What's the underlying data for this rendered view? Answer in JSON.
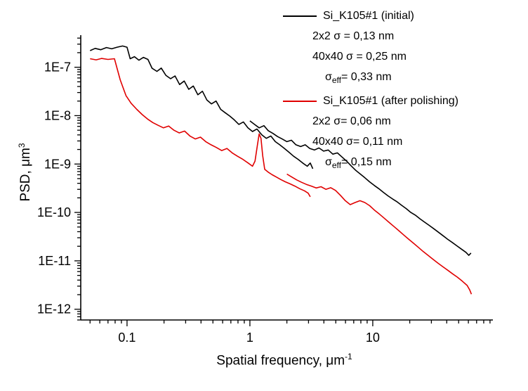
{
  "figure": {
    "background": "#ffffff",
    "text_color": "#000000"
  },
  "axes": {
    "x_title_main": "Spatial frequency, ",
    "x_title_unit": "μm",
    "x_title_sup": "-1",
    "y_title_main": "PSD, ",
    "y_title_unit": "μm",
    "y_title_sup": "3"
  },
  "legend": {
    "entries": [
      {
        "color": "#000000",
        "title": "Si_K105#1 (initial)",
        "line_2x2": "2x2 σ = 0,13 nm",
        "line_40x40": "40x40 σ = 0,25 nm",
        "sigma_symbol": "σ",
        "sigma_sub": "eff",
        "sigma_value": "= 0,33 nm"
      },
      {
        "color": "#e00000",
        "title": "Si_K105#1 (after polishing)",
        "line_2x2": "2x2 σ= 0,06 nm",
        "line_40x40": "40x40 σ= 0,11 nm",
        "sigma_symbol": "σ",
        "sigma_sub": "eff",
        "sigma_value": "= 0,15 nm"
      }
    ]
  },
  "chart_data": {
    "type": "line",
    "title": "",
    "xlabel": "Spatial frequency, μm^-1",
    "ylabel": "PSD, μm^3",
    "x_scale": "log",
    "y_scale": "log",
    "xlim": [
      0.042,
      95
    ],
    "ylim": [
      6e-13,
      4.6e-07
    ],
    "grid": false,
    "legend_position": "top-right",
    "x_ticks": [
      {
        "value": 0.1,
        "label": "0.1"
      },
      {
        "value": 1,
        "label": "1"
      },
      {
        "value": 10,
        "label": "10"
      }
    ],
    "y_ticks": [
      {
        "value": 1e-07,
        "label": "1E-7"
      },
      {
        "value": 1e-08,
        "label": "1E-8"
      },
      {
        "value": 1e-09,
        "label": "1E-9"
      },
      {
        "value": 1e-10,
        "label": "1E-10"
      },
      {
        "value": 1e-11,
        "label": "1E-11"
      },
      {
        "value": 1e-12,
        "label": "1E-12"
      }
    ],
    "series": [
      {
        "name": "Si_K105#1 (initial) 40x40 scan",
        "color": "#000000",
        "points": [
          [
            0.05,
            2.2e-07
          ],
          [
            0.055,
            2.45e-07
          ],
          [
            0.061,
            2.3e-07
          ],
          [
            0.068,
            2.55e-07
          ],
          [
            0.075,
            2.4e-07
          ],
          [
            0.083,
            2.6e-07
          ],
          [
            0.092,
            2.75e-07
          ],
          [
            0.1,
            2.6e-07
          ],
          [
            0.106,
            1.5e-07
          ],
          [
            0.115,
            1.65e-07
          ],
          [
            0.125,
            1.4e-07
          ],
          [
            0.136,
            1.6e-07
          ],
          [
            0.148,
            1.45e-07
          ],
          [
            0.16,
            9.5e-08
          ],
          [
            0.175,
            8.2e-08
          ],
          [
            0.19,
            9.6e-08
          ],
          [
            0.207,
            6.8e-08
          ],
          [
            0.226,
            5.8e-08
          ],
          [
            0.246,
            6.6e-08
          ],
          [
            0.268,
            4.4e-08
          ],
          [
            0.292,
            5.2e-08
          ],
          [
            0.318,
            3.5e-08
          ],
          [
            0.346,
            4.1e-08
          ],
          [
            0.377,
            2.7e-08
          ],
          [
            0.411,
            3.2e-08
          ],
          [
            0.447,
            2.1e-08
          ],
          [
            0.487,
            1.75e-08
          ],
          [
            0.53,
            2e-08
          ],
          [
            0.578,
            1.35e-08
          ],
          [
            0.629,
            1.15e-08
          ],
          [
            0.685,
            9.8e-09
          ],
          [
            0.746,
            8.2e-09
          ],
          [
            0.813,
            6.6e-09
          ],
          [
            0.885,
            7.4e-09
          ],
          [
            0.964,
            5.6e-09
          ],
          [
            1.05,
            4.7e-09
          ],
          [
            1.14,
            5.3e-09
          ],
          [
            1.25,
            4e-09
          ],
          [
            1.36,
            3.4e-09
          ],
          [
            1.48,
            3.8e-09
          ],
          [
            1.61,
            2.9e-09
          ],
          [
            1.75,
            2.5e-09
          ],
          [
            1.91,
            2.1e-09
          ],
          [
            2.08,
            1.75e-09
          ],
          [
            2.27,
            1.45e-09
          ],
          [
            2.47,
            1.25e-09
          ],
          [
            2.69,
            1.05e-09
          ],
          [
            2.93,
            9e-10
          ],
          [
            3.1,
            1.05e-09
          ],
          [
            3.25,
            8e-10
          ]
        ]
      },
      {
        "name": "Si_K105#1 (initial) 2x2 scan",
        "color": "#000000",
        "points": [
          [
            1.0,
            7.8e-09
          ],
          [
            1.09,
            6.6e-09
          ],
          [
            1.19,
            5.6e-09
          ],
          [
            1.3,
            6.2e-09
          ],
          [
            1.41,
            4.9e-09
          ],
          [
            1.54,
            4.3e-09
          ],
          [
            1.68,
            3.7e-09
          ],
          [
            1.83,
            3.3e-09
          ],
          [
            2.0,
            2.9e-09
          ],
          [
            2.18,
            3.1e-09
          ],
          [
            2.37,
            2.5e-09
          ],
          [
            2.59,
            2.3e-09
          ],
          [
            2.82,
            2.5e-09
          ],
          [
            3.07,
            2.1e-09
          ],
          [
            3.35,
            1.95e-09
          ],
          [
            3.65,
            2.15e-09
          ],
          [
            3.98,
            1.85e-09
          ],
          [
            4.34,
            1.95e-09
          ],
          [
            4.73,
            1.6e-09
          ],
          [
            5.15,
            1.7e-09
          ],
          [
            5.61,
            1.4e-09
          ],
          [
            6.12,
            1.15e-09
          ],
          [
            6.67,
            9.2e-10
          ],
          [
            7.27,
            7.4e-10
          ],
          [
            7.92,
            6.2e-10
          ],
          [
            8.63,
            5.2e-10
          ],
          [
            9.41,
            4.3e-10
          ],
          [
            10.3,
            3.6e-10
          ],
          [
            11.2,
            3.1e-10
          ],
          [
            12.2,
            2.6e-10
          ],
          [
            13.3,
            2.2e-10
          ],
          [
            14.5,
            1.9e-10
          ],
          [
            15.8,
            1.65e-10
          ],
          [
            17.2,
            1.4e-10
          ],
          [
            18.7,
            1.2e-10
          ],
          [
            20.4,
            1e-10
          ],
          [
            22.2,
            8.8e-11
          ],
          [
            24.2,
            7.4e-11
          ],
          [
            26.4,
            6.3e-11
          ],
          [
            28.8,
            5.4e-11
          ],
          [
            31.4,
            4.6e-11
          ],
          [
            34.2,
            3.9e-11
          ],
          [
            37.3,
            3.3e-11
          ],
          [
            40.6,
            2.8e-11
          ],
          [
            44.3,
            2.4e-11
          ],
          [
            48.3,
            2.05e-11
          ],
          [
            52.6,
            1.75e-11
          ],
          [
            57.3,
            1.5e-11
          ],
          [
            60.5,
            1.3e-11
          ],
          [
            63.0,
            1.45e-11
          ]
        ]
      },
      {
        "name": "Si_K105#1 (after polishing) 40x40 scan",
        "color": "#e00000",
        "points": [
          [
            0.05,
            1.5e-07
          ],
          [
            0.056,
            1.42e-07
          ],
          [
            0.062,
            1.52e-07
          ],
          [
            0.07,
            1.45e-07
          ],
          [
            0.079,
            1.5e-07
          ],
          [
            0.088,
            5.5e-08
          ],
          [
            0.098,
            2.6e-08
          ],
          [
            0.108,
            1.8e-08
          ],
          [
            0.12,
            1.35e-08
          ],
          [
            0.133,
            1.05e-08
          ],
          [
            0.147,
            8.5e-09
          ],
          [
            0.162,
            7.2e-09
          ],
          [
            0.179,
            6.3e-09
          ],
          [
            0.198,
            5.6e-09
          ],
          [
            0.218,
            6.1e-09
          ],
          [
            0.241,
            5e-09
          ],
          [
            0.266,
            4.4e-09
          ],
          [
            0.294,
            4.8e-09
          ],
          [
            0.325,
            3.8e-09
          ],
          [
            0.359,
            3.3e-09
          ],
          [
            0.396,
            3.6e-09
          ],
          [
            0.437,
            2.9e-09
          ],
          [
            0.483,
            2.5e-09
          ],
          [
            0.533,
            2.2e-09
          ],
          [
            0.589,
            1.9e-09
          ],
          [
            0.65,
            2.1e-09
          ],
          [
            0.718,
            1.7e-09
          ],
          [
            0.793,
            1.45e-09
          ],
          [
            0.876,
            1.25e-09
          ],
          [
            0.967,
            1.05e-09
          ],
          [
            1.05,
            9e-10
          ],
          [
            1.1,
            1.15e-09
          ],
          [
            1.15,
            2.4e-09
          ],
          [
            1.19,
            4.2e-09
          ],
          [
            1.23,
            3.4e-09
          ],
          [
            1.27,
            1.5e-09
          ],
          [
            1.32,
            7.8e-10
          ],
          [
            1.41,
            6.8e-10
          ],
          [
            1.52,
            6e-10
          ],
          [
            1.64,
            5.4e-10
          ],
          [
            1.78,
            4.8e-10
          ],
          [
            1.94,
            4.3e-10
          ],
          [
            2.12,
            3.9e-10
          ],
          [
            2.32,
            3.5e-10
          ],
          [
            2.54,
            3.1e-10
          ],
          [
            2.78,
            2.8e-10
          ],
          [
            2.98,
            2.5e-10
          ],
          [
            3.1,
            2.1e-10
          ]
        ]
      },
      {
        "name": "Si_K105#1 (after polishing) 2x2 scan",
        "color": "#e00000",
        "points": [
          [
            2.0,
            6.2e-10
          ],
          [
            2.19,
            5.4e-10
          ],
          [
            2.4,
            4.7e-10
          ],
          [
            2.63,
            4.2e-10
          ],
          [
            2.88,
            3.8e-10
          ],
          [
            3.16,
            3.5e-10
          ],
          [
            3.46,
            3.2e-10
          ],
          [
            3.79,
            3.4e-10
          ],
          [
            4.15,
            3e-10
          ],
          [
            4.55,
            3.25e-10
          ],
          [
            4.98,
            2.85e-10
          ],
          [
            5.46,
            2.25e-10
          ],
          [
            5.98,
            1.75e-10
          ],
          [
            6.55,
            1.45e-10
          ],
          [
            7.18,
            1.6e-10
          ],
          [
            7.87,
            1.75e-10
          ],
          [
            8.62,
            1.6e-10
          ],
          [
            9.44,
            1.38e-10
          ],
          [
            10.3,
            1.12e-10
          ],
          [
            11.3,
            9.3e-11
          ],
          [
            12.4,
            7.6e-11
          ],
          [
            13.6,
            6.2e-11
          ],
          [
            14.9,
            5.1e-11
          ],
          [
            16.3,
            4.2e-11
          ],
          [
            17.9,
            3.4e-11
          ],
          [
            19.6,
            2.8e-11
          ],
          [
            21.5,
            2.3e-11
          ],
          [
            23.5,
            1.9e-11
          ],
          [
            25.8,
            1.55e-11
          ],
          [
            28.2,
            1.3e-11
          ],
          [
            30.9,
            1.08e-11
          ],
          [
            33.9,
            9e-12
          ],
          [
            37.1,
            7.6e-12
          ],
          [
            40.7,
            6.4e-12
          ],
          [
            44.6,
            5.4e-12
          ],
          [
            48.8,
            4.6e-12
          ],
          [
            53.5,
            3.8e-12
          ],
          [
            58.6,
            3.1e-12
          ],
          [
            61.5,
            2.5e-12
          ],
          [
            63.5,
            2.05e-12
          ]
        ]
      }
    ]
  }
}
